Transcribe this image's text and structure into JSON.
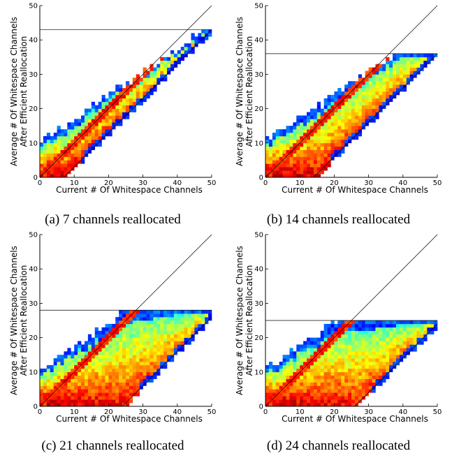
{
  "chart_data": [
    {
      "type": "heatmap",
      "caption": "(a) 7 channels reallocated",
      "xlabel": "Current # Of Whitespace Channels",
      "ylabel_lines": [
        "Average # Of Whitespace Channels",
        "After Efficient Reallocation"
      ],
      "xlim": [
        0,
        50
      ],
      "ylim": [
        0,
        50
      ],
      "xticks": [
        "0",
        "10",
        "20",
        "30",
        "40",
        "50"
      ],
      "yticks": [
        "0",
        "10",
        "20",
        "30",
        "40",
        "50"
      ],
      "reference_lines": {
        "identity": true,
        "offset_line": 7,
        "cap": 43
      },
      "colormap": "jet",
      "cell_size": 1
    },
    {
      "type": "heatmap",
      "caption": "(b) 14 channels reallocated",
      "xlabel": "Current # Of Whitespace Channels",
      "ylabel_lines": [
        "Average # Of Whitespace Channels",
        "After Efficient Reallocation"
      ],
      "xlim": [
        0,
        50
      ],
      "ylim": [
        0,
        50
      ],
      "xticks": [
        "0",
        "10",
        "20",
        "30",
        "40",
        "50"
      ],
      "yticks": [
        "0",
        "10",
        "20",
        "30",
        "40",
        "50"
      ],
      "reference_lines": {
        "identity": true,
        "offset_line": 14,
        "cap": 36
      },
      "colormap": "jet",
      "cell_size": 1
    },
    {
      "type": "heatmap",
      "caption": "(c) 21 channels reallocated",
      "xlabel": "Current # Of Whitespace Channels",
      "ylabel_lines": [
        "Average # Of Whitespace Channels",
        "After Efficient Reallocation"
      ],
      "xlim": [
        0,
        50
      ],
      "ylim": [
        0,
        50
      ],
      "xticks": [
        "0",
        "10",
        "20",
        "30",
        "40",
        "50"
      ],
      "yticks": [
        "0",
        "10",
        "20",
        "30",
        "40",
        "50"
      ],
      "reference_lines": {
        "identity": true,
        "offset_line": 24,
        "cap": 28
      },
      "colormap": "jet",
      "cell_size": 1
    },
    {
      "type": "heatmap",
      "caption": "(d) 24 channels reallocated",
      "xlabel": "Current # Of Whitespace Channels",
      "ylabel_lines": [
        "Average # Of Whitespace Channels",
        "After Efficient Reallocation"
      ],
      "xlim": [
        0,
        50
      ],
      "ylim": [
        0,
        50
      ],
      "xticks": [
        "0",
        "10",
        "20",
        "30",
        "40",
        "50"
      ],
      "yticks": [
        "0",
        "10",
        "20",
        "30",
        "40",
        "50"
      ],
      "reference_lines": {
        "identity": true,
        "offset_line": 26,
        "cap": 25
      },
      "colormap": "jet",
      "cell_size": 1
    }
  ]
}
